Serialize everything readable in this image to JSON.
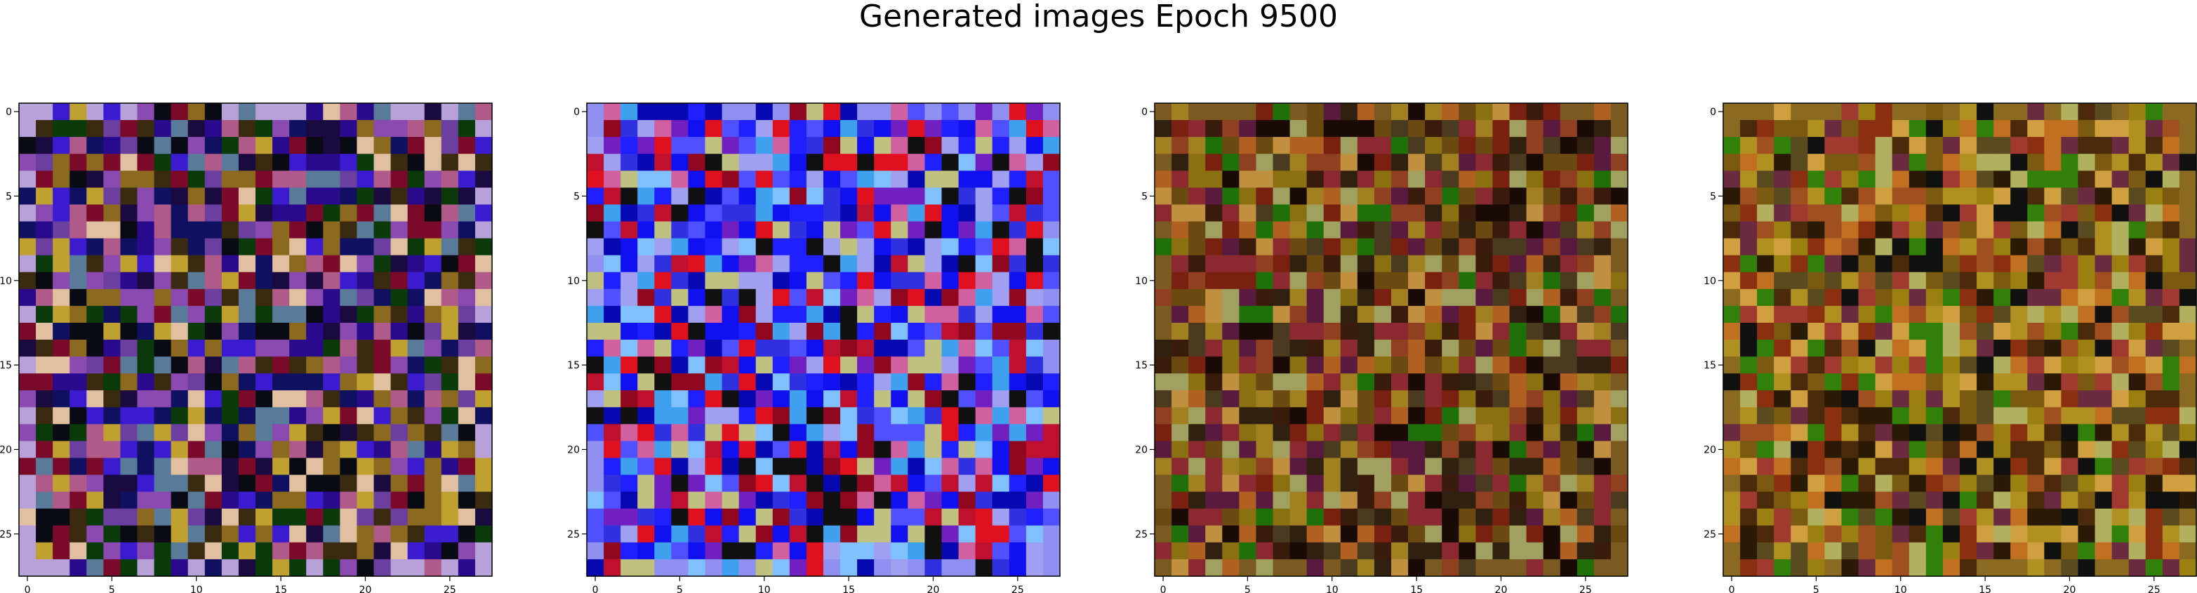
{
  "figure": {
    "title": "Generated images Epoch 9500",
    "colors": {
      "axis": "#000000",
      "background": "#ffffff"
    }
  },
  "chart_data": [
    {
      "type": "heatmap",
      "title": "",
      "xlabel": "",
      "ylabel": "",
      "grid_size": [
        28,
        28
      ],
      "xlim": [
        -0.5,
        27.5
      ],
      "ylim": [
        27.5,
        -0.5
      ],
      "xticks": [
        0,
        5,
        10,
        15,
        20,
        25
      ],
      "yticks": [
        0,
        5,
        10,
        15,
        20,
        25
      ],
      "palette": [
        "#2a0a8c",
        "#3b1bd0",
        "#1a0a40",
        "#6b3fa0",
        "#8a4ab0",
        "#0a0a14",
        "#3a2a10",
        "#8b6a20",
        "#0a3a0a",
        "#7a0a2a",
        "#b05a8a",
        "#5a7a9a",
        "#c0a030",
        "#e0c0a0",
        "#101060"
      ],
      "border_color": "#b8a0d8",
      "seed": 11
    },
    {
      "type": "heatmap",
      "title": "",
      "xlabel": "",
      "ylabel": "",
      "grid_size": [
        28,
        28
      ],
      "xlim": [
        -0.5,
        27.5
      ],
      "ylim": [
        27.5,
        -0.5
      ],
      "xticks": [
        0,
        5,
        10,
        15,
        20,
        25
      ],
      "yticks": [
        0,
        5,
        10,
        15,
        20,
        25
      ],
      "palette": [
        "#1010f0",
        "#2020ff",
        "#3030e0",
        "#0808b0",
        "#5050ff",
        "#c01030",
        "#e01020",
        "#900820",
        "#d060a0",
        "#a0a0f0",
        "#40a0f0",
        "#80c0ff",
        "#101010",
        "#c0c080",
        "#7020c0"
      ],
      "border_color": "#9090f0",
      "seed": 23
    },
    {
      "type": "heatmap",
      "title": "",
      "xlabel": "",
      "ylabel": "",
      "grid_size": [
        28,
        28
      ],
      "xlim": [
        -0.5,
        27.5
      ],
      "ylim": [
        27.5,
        -0.5
      ],
      "xticks": [
        0,
        5,
        10,
        15,
        20,
        25
      ],
      "yticks": [
        0,
        5,
        10,
        15,
        20,
        25
      ],
      "palette": [
        "#8a7010",
        "#6a4a10",
        "#a08020",
        "#3a1a0a",
        "#7a2010",
        "#1a0a05",
        "#b06020",
        "#4a3a20",
        "#20700a",
        "#8a2a30",
        "#c09040",
        "#5a1a40",
        "#a0a060",
        "#302010",
        "#904020"
      ],
      "border_color": "#7a5a20",
      "seed": 37
    },
    {
      "type": "heatmap",
      "title": "",
      "xlabel": "",
      "ylabel": "",
      "grid_size": [
        28,
        28
      ],
      "xlim": [
        -0.5,
        27.5
      ],
      "ylim": [
        27.5,
        -0.5
      ],
      "xticks": [
        0,
        5,
        10,
        15,
        20,
        25
      ],
      "yticks": [
        0,
        5,
        10,
        15,
        20,
        25
      ],
      "palette": [
        "#9a8010",
        "#7a5a10",
        "#b09020",
        "#4a2a0a",
        "#8a3010",
        "#2a1a05",
        "#c07020",
        "#5a4a20",
        "#30800a",
        "#a03a30",
        "#d0a040",
        "#6a2a40",
        "#b0b060",
        "#101010",
        "#a05020"
      ],
      "border_color": "#8a6a20",
      "seed": 53
    }
  ]
}
